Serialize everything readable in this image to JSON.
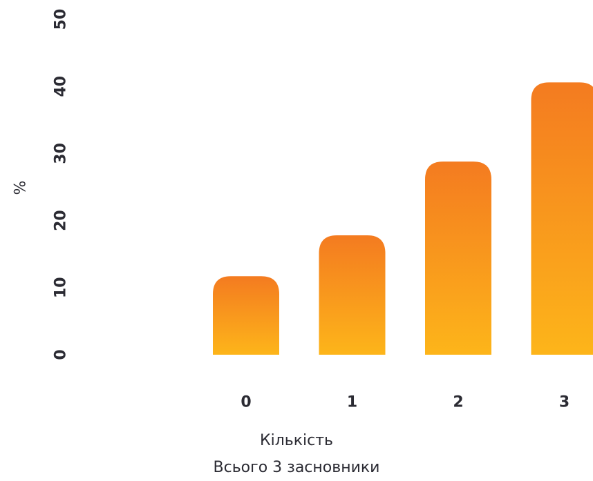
{
  "chart_data": {
    "type": "bar",
    "categories": [
      "0",
      "1",
      "2",
      "3"
    ],
    "values": [
      11.7,
      17.8,
      28.8,
      40.6
    ],
    "ylabel": "%",
    "xlabel": "Кількість",
    "subtitle": "Всього 3 засновники",
    "yticks": [
      "0",
      "10",
      "20",
      "30",
      "40",
      "50"
    ],
    "ylim": [
      0,
      50
    ],
    "grid": false,
    "colors": {
      "bar_top": "#F47B20",
      "bar_bottom": "#FDB51A",
      "text": "#2B2B33"
    }
  }
}
